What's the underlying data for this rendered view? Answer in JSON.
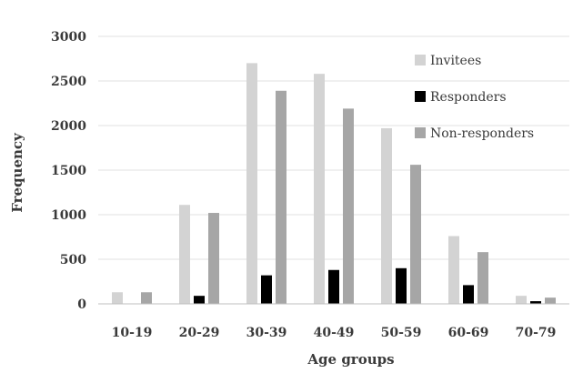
{
  "chart_data": {
    "type": "bar",
    "title": "",
    "xlabel": "Age groups",
    "ylabel": "Frequency",
    "categories": [
      "10-19",
      "20-29",
      "30-39",
      "40-49",
      "50-59",
      "60-69",
      "70-79"
    ],
    "series": [
      {
        "name": "Invitees",
        "values": [
          130,
          1110,
          2700,
          2580,
          1970,
          760,
          90
        ],
        "color": "#d3d3d3"
      },
      {
        "name": "Responders",
        "values": [
          0,
          90,
          320,
          380,
          400,
          210,
          30
        ],
        "color": "#000000"
      },
      {
        "name": "Non-responders",
        "values": [
          130,
          1020,
          2390,
          2190,
          1560,
          580,
          70
        ],
        "color": "#a6a6a6"
      }
    ],
    "ylim": [
      0,
      3000
    ],
    "yticks": [
      0,
      500,
      1000,
      1500,
      2000,
      2500,
      3000
    ],
    "grid": true,
    "legend_position": "right"
  }
}
